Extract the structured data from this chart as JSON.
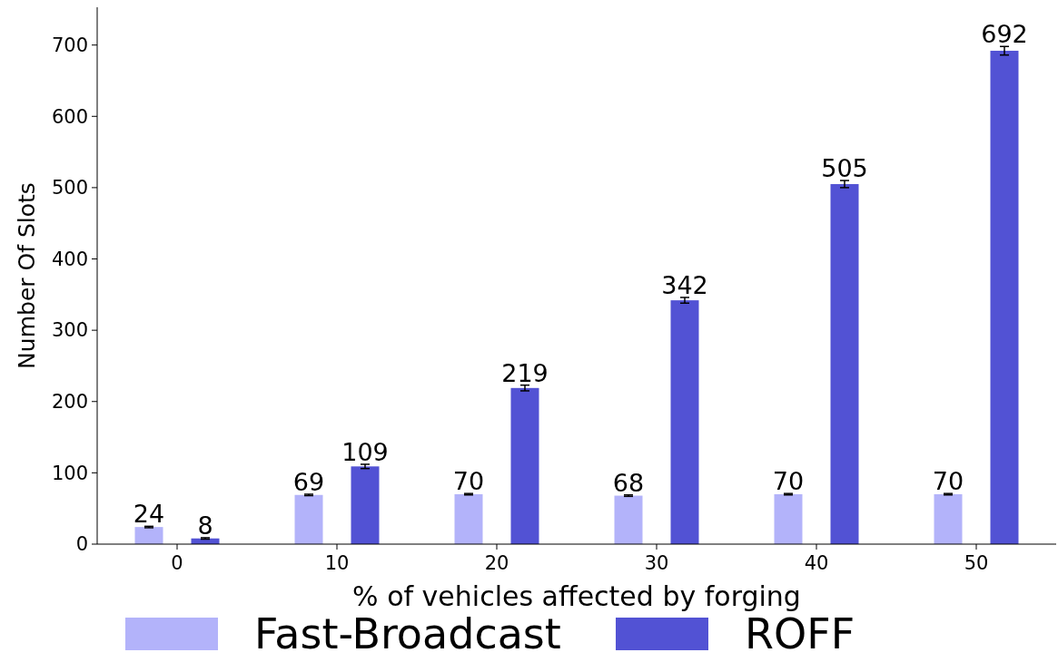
{
  "chart_data": {
    "type": "bar",
    "xlabel": "% of vehicles affected by forging",
    "ylabel": "Number Of Slots",
    "categories": [
      "0",
      "10",
      "20",
      "30",
      "40",
      "50"
    ],
    "series": [
      {
        "name": "Fast-Broadcast",
        "color": "#b3b3fa",
        "values": [
          24,
          69,
          70,
          68,
          70,
          70
        ],
        "errors": [
          1,
          1,
          1,
          1,
          1,
          1
        ]
      },
      {
        "name": "ROFF",
        "color": "#5252d4",
        "values": [
          8,
          109,
          219,
          342,
          505,
          692
        ],
        "errors": [
          1,
          3,
          4,
          4,
          5,
          6
        ]
      }
    ],
    "ylim": [
      0,
      753
    ],
    "yticks": [
      0,
      100,
      200,
      300,
      400,
      500,
      600,
      700
    ],
    "data_labels": true,
    "grid": false,
    "legend": "bottom"
  }
}
